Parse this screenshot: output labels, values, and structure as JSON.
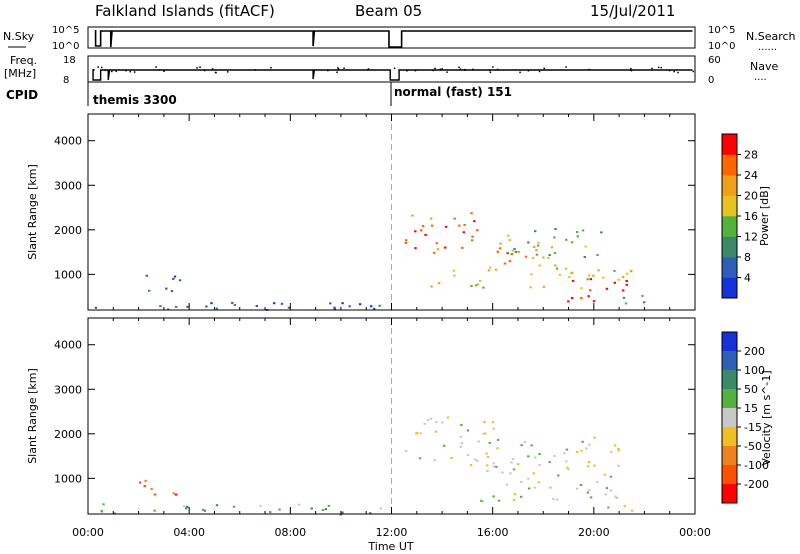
{
  "header": {
    "station": "Falkland Islands (fitACF)",
    "beam": "Beam 05",
    "date": "15/Jul/2011"
  },
  "sky_panel": {
    "left_label": "N.Sky",
    "right_label": "N.Search",
    "right_label_dots": "......",
    "left_ticks": [
      "10^5",
      "10^0"
    ],
    "right_ticks": [
      "10^5",
      "10^0"
    ]
  },
  "freq_panel": {
    "left_label_1": "Freq.",
    "left_label_2": "[MHz]",
    "right_label": "Nave",
    "right_label_dots": "....",
    "left_ticks": [
      "18",
      "8"
    ],
    "right_ticks": [
      "60",
      "0"
    ]
  },
  "cpid_panel": {
    "label": "CPID",
    "modes": [
      {
        "name": "themis 3300",
        "start_hour": 0
      },
      {
        "name": "normal (fast) 151",
        "start_hour": 12
      }
    ]
  },
  "x_axis": {
    "label": "Time UT",
    "tick_labels": [
      "00:00",
      "04:00",
      "08:00",
      "12:00",
      "16:00",
      "20:00",
      "00:00"
    ],
    "range_hours": [
      0,
      24
    ]
  },
  "chart_data": [
    {
      "type": "heatmap",
      "panel": "power",
      "ylabel": "Slant Range [km]",
      "ylim": [
        200,
        4600
      ],
      "y_ticks": [
        1000,
        2000,
        3000,
        4000
      ],
      "x_range_hours": [
        0,
        24
      ],
      "colorbar": {
        "label": "Power [dB]",
        "ticks": [
          "4",
          "8",
          "12",
          "16",
          "20",
          "24",
          "28"
        ],
        "colors": [
          "#1432d8",
          "#2e5fb8",
          "#3a8a6a",
          "#52b23c",
          "#e6c21e",
          "#f0a018",
          "#ff6400",
          "#ff0000"
        ]
      },
      "regions": [
        {
          "t0": 2.0,
          "t1": 3.6,
          "r0": 550,
          "r1": 1050,
          "level": 1
        },
        {
          "t0": 0.2,
          "t1": 11.8,
          "r0": 200,
          "r1": 450,
          "level": 1
        },
        {
          "t0": 12.5,
          "t1": 15.8,
          "r0": 1500,
          "r1": 2400,
          "level": 6
        },
        {
          "t0": 15.5,
          "t1": 18.5,
          "r0": 1200,
          "r1": 1900,
          "level": 5
        },
        {
          "t0": 13.5,
          "t1": 21.5,
          "r0": 700,
          "r1": 1200,
          "level": 4
        },
        {
          "t0": 18.8,
          "t1": 21.3,
          "r0": 400,
          "r1": 1000,
          "level": 7
        },
        {
          "t0": 16.5,
          "t1": 20.5,
          "r0": 1400,
          "r1": 2100,
          "level": 3
        },
        {
          "t0": 20.5,
          "t1": 22.0,
          "r0": 250,
          "r1": 550,
          "level": 2
        }
      ]
    },
    {
      "type": "heatmap",
      "panel": "velocity",
      "ylabel": "Slant Range [km]",
      "ylim": [
        200,
        4600
      ],
      "y_ticks": [
        1000,
        2000,
        3000,
        4000
      ],
      "x_range_hours": [
        0,
        24
      ],
      "colorbar": {
        "label": "Velocity [m s^-1]",
        "ticks": [
          "200",
          "100",
          "50",
          "15",
          "-15",
          "-50",
          "-100",
          "-200"
        ],
        "colors": [
          "#1432d8",
          "#2e5fb8",
          "#3a8a6a",
          "#52b23c",
          "#c8c8c8",
          "#f0c020",
          "#f08020",
          "#ff5000",
          "#ff0000"
        ]
      },
      "regions": [
        {
          "t0": 2.0,
          "t1": 3.6,
          "r0": 550,
          "r1": 1050,
          "level": 7
        },
        {
          "t0": 0.2,
          "t1": 11.8,
          "r0": 200,
          "r1": 450,
          "level": 3
        },
        {
          "t0": 12.5,
          "t1": 16.0,
          "r0": 1300,
          "r1": 2400,
          "level": 4
        },
        {
          "t0": 15.5,
          "t1": 21.3,
          "r0": 500,
          "r1": 2000,
          "level": 4
        },
        {
          "t0": 20.5,
          "t1": 22.0,
          "r0": 250,
          "r1": 450,
          "level": 5
        }
      ]
    }
  ]
}
